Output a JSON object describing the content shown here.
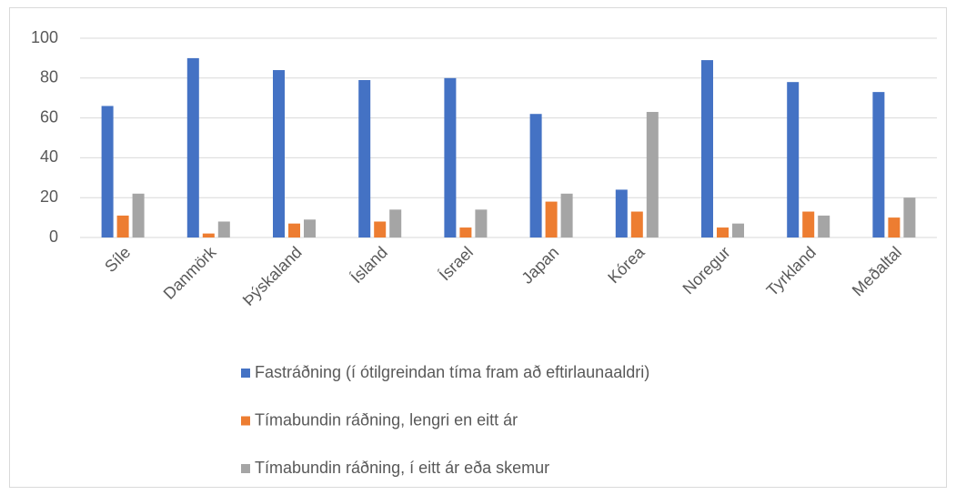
{
  "chart_data": {
    "type": "bar",
    "categories": [
      "Síle",
      "Danmörk",
      "Þýskaland",
      "Ísland",
      "Ísrael",
      "Japan",
      "Kórea",
      "Noregur",
      "Tyrkland",
      "Meðaltal"
    ],
    "series": [
      {
        "name": "Fastráðning (í ótilgreindan tíma fram að eftirlaunaaldri)",
        "color": "#4472c4",
        "values": [
          66,
          90,
          84,
          79,
          80,
          62,
          24,
          89,
          78,
          73
        ]
      },
      {
        "name": "Tímabundin ráðning, lengri en eitt ár",
        "color": "#ed7d31",
        "values": [
          11,
          2,
          7,
          8,
          5,
          18,
          13,
          5,
          13,
          10
        ]
      },
      {
        "name": "Tímabundin ráðning, í eitt ár eða skemur",
        "color": "#a5a5a5",
        "values": [
          22,
          8,
          9,
          14,
          14,
          22,
          63,
          7,
          11,
          20
        ]
      }
    ],
    "ylim": [
      0,
      100
    ],
    "yticks": [
      0,
      20,
      40,
      60,
      80,
      100
    ],
    "grid": true,
    "legend": "bottom"
  }
}
